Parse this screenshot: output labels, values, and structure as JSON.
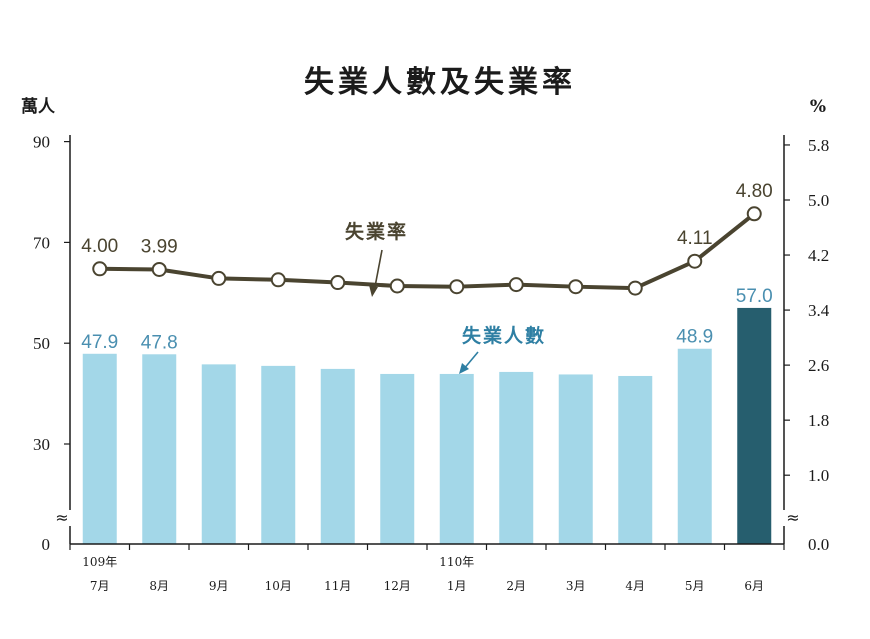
{
  "chart_data": {
    "type": "bar+line",
    "title": "失業人數及失業率",
    "left_axis_unit": "萬人",
    "right_axis_unit": "%",
    "left_ticks": [
      "0",
      "30",
      "50",
      "70",
      "90"
    ],
    "right_ticks": [
      "0.0",
      "1.0",
      "1.8",
      "2.6",
      "3.4",
      "4.2",
      "5.0",
      "5.8"
    ],
    "axis_break_symbol": "≈",
    "year_labels": [
      {
        "index": 0,
        "text": "109年"
      },
      {
        "index": 6,
        "text": "110年"
      }
    ],
    "categories": [
      "7月",
      "8月",
      "9月",
      "10月",
      "11月",
      "12月",
      "1月",
      "2月",
      "3月",
      "4月",
      "5月",
      "6月"
    ],
    "series": [
      {
        "name": "失業人數",
        "kind": "bar",
        "values": [
          47.9,
          47.8,
          45.8,
          45.5,
          44.9,
          43.9,
          43.9,
          44.3,
          43.8,
          43.5,
          48.9,
          57.0
        ],
        "labels": [
          "47.9",
          "47.8",
          "",
          "",
          "",
          "",
          "",
          "",
          "",
          "",
          "48.9",
          "57.0"
        ],
        "color": "#a3d7e8",
        "highlight_color": "#265e6e"
      },
      {
        "name": "失業率",
        "kind": "line",
        "values": [
          4.0,
          3.99,
          3.86,
          3.84,
          3.8,
          3.75,
          3.74,
          3.77,
          3.74,
          3.72,
          4.11,
          4.8
        ],
        "labels": [
          "4.00",
          "3.99",
          "",
          "",
          "",
          "",
          "",
          "",
          "",
          "",
          "4.11",
          "4.80"
        ],
        "color": "#4a4430"
      }
    ],
    "annotations": {
      "line": "失業率",
      "bar": "失業人數"
    }
  }
}
